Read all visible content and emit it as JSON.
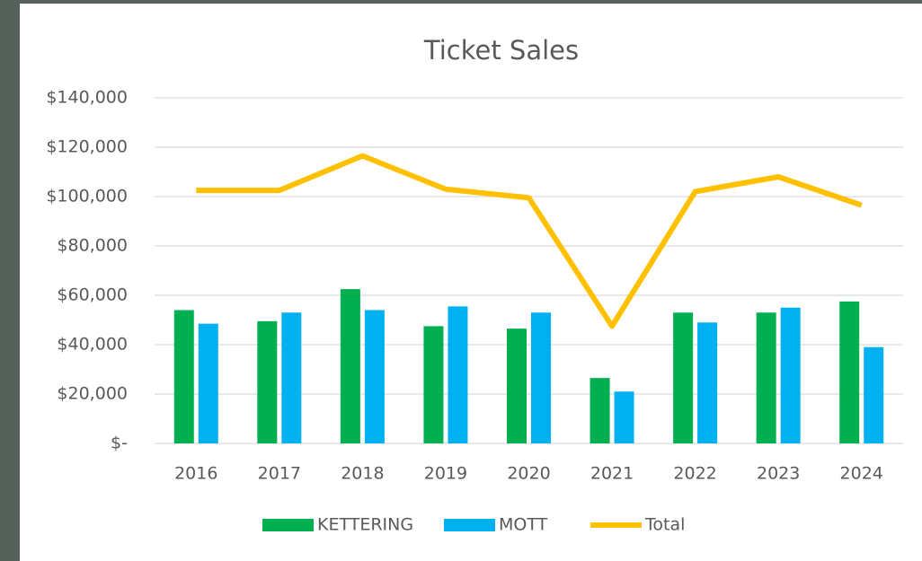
{
  "chart_data": {
    "type": "bar-line",
    "title": "Ticket Sales",
    "categories": [
      "2016",
      "2017",
      "2018",
      "2019",
      "2020",
      "2021",
      "2022",
      "2023",
      "2024"
    ],
    "series": [
      {
        "name": "KETTERING",
        "type": "bar",
        "color": "#00b050",
        "values": [
          54000,
          49500,
          62500,
          47500,
          46500,
          26500,
          53000,
          53000,
          57500
        ]
      },
      {
        "name": "MOTT",
        "type": "bar",
        "color": "#00b0f0",
        "values": [
          48500,
          53000,
          54000,
          55500,
          53000,
          21000,
          49000,
          55000,
          39000
        ]
      },
      {
        "name": "Total",
        "type": "line",
        "color": "#ffc000",
        "values": [
          102500,
          102500,
          116500,
          103000,
          99500,
          47500,
          102000,
          108000,
          96500
        ]
      }
    ],
    "ylim": [
      0,
      140000
    ],
    "yticks": [
      {
        "value": 0,
        "label": "$-"
      },
      {
        "value": 20000,
        "label": "$20,000"
      },
      {
        "value": 40000,
        "label": "$40,000"
      },
      {
        "value": 60000,
        "label": "$60,000"
      },
      {
        "value": 80000,
        "label": "$80,000"
      },
      {
        "value": 100000,
        "label": "$100,000"
      },
      {
        "value": 120000,
        "label": "$120,000"
      },
      {
        "value": 140000,
        "label": "$140,000"
      }
    ],
    "grid": true,
    "legend": "bottom"
  }
}
